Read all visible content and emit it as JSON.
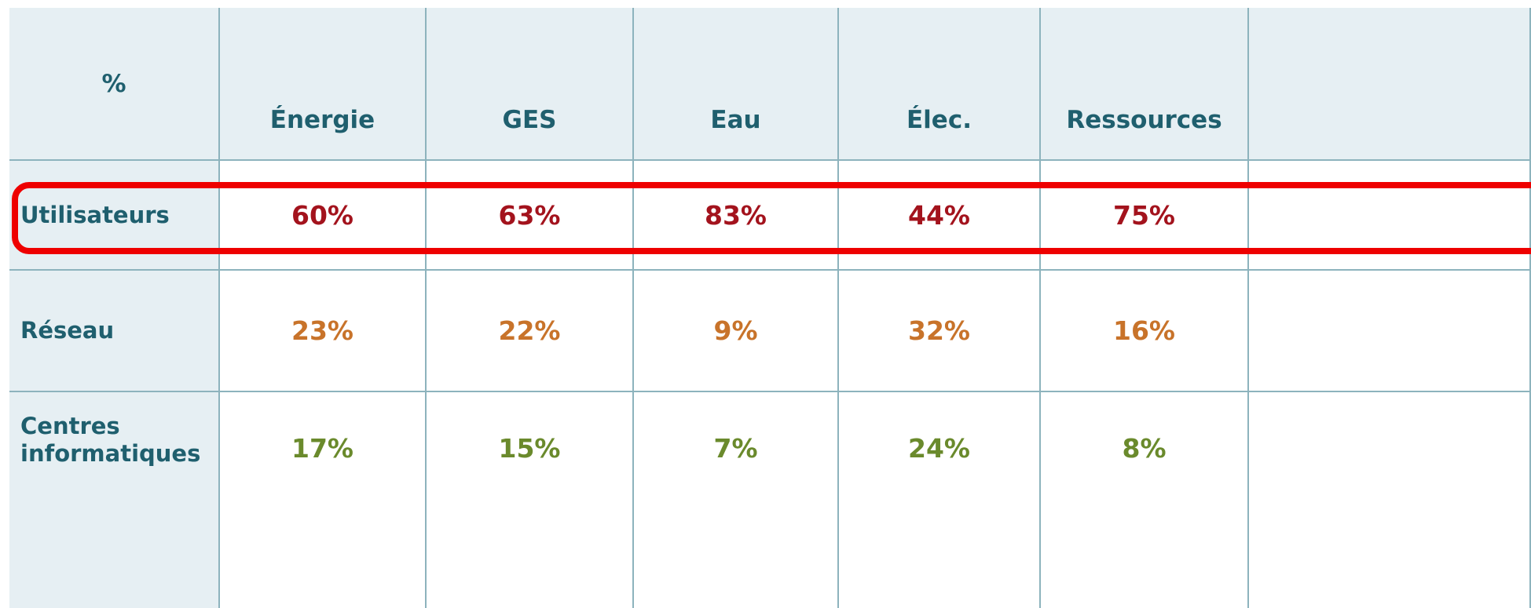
{
  "header": {
    "corner": "%",
    "columns": [
      "Énergie",
      "GES",
      "Eau",
      "Élec.",
      "Ressources"
    ]
  },
  "rows": [
    {
      "label": "Utilisateurs",
      "values": [
        "60%",
        "63%",
        "83%",
        "44%",
        "75%"
      ]
    },
    {
      "label": "Réseau",
      "values": [
        "23%",
        "22%",
        "9%",
        "32%",
        "16%"
      ]
    },
    {
      "label": "Centres informatiques",
      "values": [
        "17%",
        "15%",
        "7%",
        "24%",
        "8%"
      ]
    }
  ]
}
